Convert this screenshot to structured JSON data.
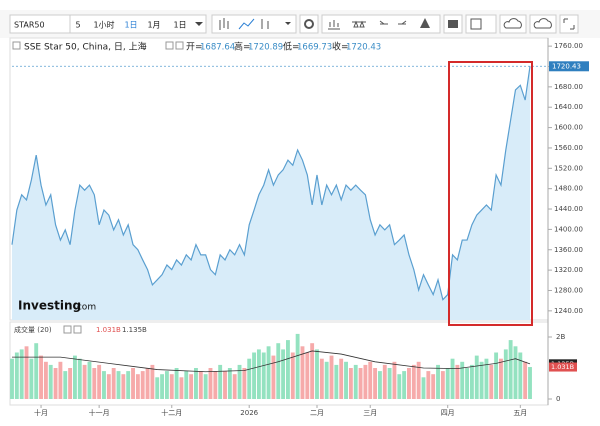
{
  "toolbar": {
    "symbol": "STAR50",
    "intervals": [
      "5",
      "1小时",
      "1日",
      "1月",
      "1日"
    ]
  },
  "chart_data": {
    "type": "line",
    "title": "SSE Star 50, China, 日, 上海",
    "ohlc": {
      "open_label": "开=",
      "open": 1687.64,
      "high_label": "高=",
      "high": 1720.89,
      "low_label": "低=",
      "low": 1669.73,
      "close_label": "收=",
      "close": 1720.43
    },
    "watermark": [
      "Investing",
      ".com"
    ],
    "color": "#5a9fd0",
    "fill": "#d8ecf9",
    "values": [
      1370,
      1438,
      1468,
      1458,
      1497,
      1546,
      1487,
      1448,
      1468,
      1409,
      1379,
      1399,
      1370,
      1438,
      1487,
      1477,
      1487,
      1468,
      1409,
      1438,
      1428,
      1399,
      1419,
      1389,
      1409,
      1370,
      1360,
      1340,
      1321,
      1291,
      1301,
      1311,
      1330,
      1321,
      1340,
      1330,
      1350,
      1340,
      1370,
      1350,
      1350,
      1321,
      1311,
      1350,
      1340,
      1360,
      1350,
      1370,
      1350,
      1409,
      1438,
      1468,
      1487,
      1517,
      1487,
      1507,
      1517,
      1536,
      1526,
      1556,
      1536,
      1507,
      1448,
      1507,
      1448,
      1487,
      1468,
      1487,
      1458,
      1487,
      1477,
      1487,
      1477,
      1468,
      1419,
      1389,
      1409,
      1399,
      1409,
      1370,
      1379,
      1389,
      1350,
      1321,
      1281,
      1311,
      1291,
      1272,
      1301,
      1262,
      1272,
      1350,
      1340,
      1379,
      1379,
      1409,
      1428,
      1438,
      1448,
      1438,
      1507,
      1487,
      1556,
      1615,
      1674,
      1683,
      1654,
      1720.43
    ],
    "xlim": [
      0,
      107
    ],
    "xticks": [
      {
        "value": 6,
        "label": "十月"
      },
      {
        "value": 18,
        "label": "十一月"
      },
      {
        "value": 33,
        "label": "十二月"
      },
      {
        "value": 49,
        "label": "2026"
      },
      {
        "value": 63,
        "label": "二月"
      },
      {
        "value": 74,
        "label": "三月"
      },
      {
        "value": 90,
        "label": "四月"
      },
      {
        "value": 105,
        "label": "五月"
      }
    ],
    "ylim": [
      1222,
      1776
    ],
    "yticks": [
      {
        "value": 1240,
        "label": "1240.00"
      },
      {
        "value": 1280,
        "label": "1280.00"
      },
      {
        "value": 1320,
        "label": "1320.00"
      },
      {
        "value": 1360,
        "label": "1360.00"
      },
      {
        "value": 1400,
        "label": "1400.00"
      },
      {
        "value": 1440,
        "label": "1440.00"
      },
      {
        "value": 1480,
        "label": "1480.00"
      },
      {
        "value": 1520,
        "label": "1520.00"
      },
      {
        "value": 1560,
        "label": "1560.00"
      },
      {
        "value": 1600,
        "label": "1600.00"
      },
      {
        "value": 1640,
        "label": "1640.00"
      },
      {
        "value": 1680,
        "label": "1680.00"
      },
      {
        "value": 1720,
        "label": "1720.00"
      },
      {
        "value": 1760,
        "label": "1760.00"
      }
    ],
    "volume": {
      "title": "成交量 (20)",
      "up_color": "#94e2c0",
      "down_color": "#f6aaaa",
      "ma_color": "#333333",
      "values": [
        1.3,
        1.5,
        1.6,
        1.7,
        1.3,
        1.8,
        1.4,
        1.2,
        1.1,
        1.0,
        1.2,
        0.9,
        1.0,
        1.4,
        1.3,
        1.1,
        1.2,
        1.0,
        1.1,
        0.9,
        0.8,
        1.0,
        0.9,
        0.8,
        0.9,
        1.0,
        0.8,
        0.9,
        1.0,
        1.1,
        0.7,
        0.8,
        0.9,
        0.8,
        1.0,
        0.7,
        0.9,
        0.8,
        1.0,
        0.9,
        0.8,
        1.0,
        0.9,
        1.1,
        0.9,
        1.0,
        0.8,
        1.1,
        1.0,
        1.3,
        1.5,
        1.6,
        1.5,
        1.7,
        1.4,
        1.8,
        1.6,
        1.9,
        1.5,
        2.1,
        1.7,
        1.5,
        1.8,
        1.6,
        1.3,
        1.2,
        1.4,
        1.1,
        1.3,
        1.2,
        1.0,
        1.1,
        1.0,
        1.1,
        1.2,
        1.0,
        0.9,
        1.1,
        1.0,
        1.2,
        0.8,
        0.9,
        1.0,
        1.1,
        1.2,
        0.7,
        0.9,
        0.8,
        1.1,
        0.9,
        1.0,
        1.3,
        1.1,
        1.2,
        1.0,
        1.1,
        1.4,
        1.2,
        1.3,
        1.1,
        1.5,
        1.3,
        1.6,
        1.9,
        1.7,
        1.5,
        1.2,
        1.031
      ],
      "ma_x": [
        0,
        10,
        20,
        30,
        40,
        48,
        55,
        62,
        68,
        75,
        85,
        92,
        100,
        104,
        107
      ],
      "ma_values": [
        1.35,
        1.35,
        1.15,
        0.95,
        0.88,
        0.92,
        1.2,
        1.55,
        1.45,
        1.2,
        1.0,
        0.98,
        1.15,
        1.3,
        1.135
      ],
      "last_volume": {
        "value": 1.031,
        "label": "1.031B"
      },
      "last_ma": {
        "value": 1.135,
        "label": "1.135B"
      },
      "ylim": [
        0,
        2.5
      ],
      "yticks": [
        0,
        {
          "value": 2,
          "label": "2B"
        }
      ]
    }
  }
}
